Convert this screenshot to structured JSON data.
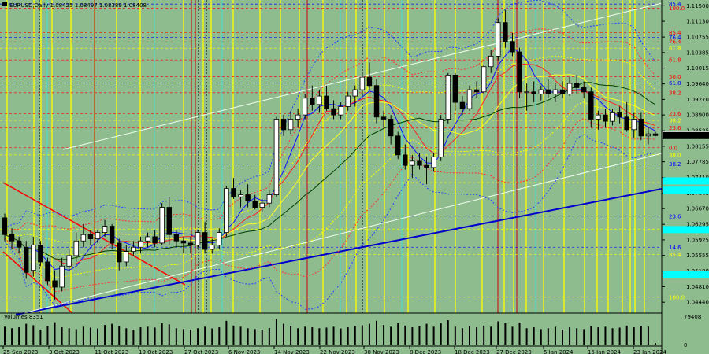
{
  "header": {
    "ohlc": "EURUSD,Daily  1.08425 1.08497 1.08389 1.08408",
    "volume_label": "Volumes 8351"
  },
  "chart_data": {
    "type": "candlestick",
    "symbol": "EURUSD",
    "timeframe": "Daily",
    "open": 1.08425,
    "high": 1.08497,
    "low": 1.08389,
    "close": 1.08408,
    "ylim": [
      1.042,
      1.116
    ],
    "price_ticks": [
      "1.11500",
      "1.11130",
      "1.10755",
      "1.10385",
      "1.10015",
      "1.09640",
      "1.09270",
      "1.08900",
      "1.08525",
      "1.08155",
      "1.07785",
      "1.07410",
      "1.07040",
      "1.06670",
      "1.06295",
      "1.05925",
      "1.05555",
      "1.05180",
      "1.04810",
      "1.04440"
    ],
    "current_price": "1.08408",
    "price_boxes": [
      {
        "price": 1.0843,
        "color": "#ffffff",
        "text_color": "#000000"
      },
      {
        "price": 1.0841,
        "color": "#000000",
        "text_color": "#ffffff"
      },
      {
        "price": 1.0733,
        "color": "#00ffff",
        "text_color": "#000000"
      },
      {
        "price": 1.0711,
        "color": "#00ffff",
        "text_color": "#000000"
      },
      {
        "price": 1.0617,
        "color": "#00ffff",
        "text_color": "#000000"
      },
      {
        "price": 1.0509,
        "color": "#00ffff",
        "text_color": "#000000"
      }
    ],
    "fib_labels": [
      {
        "text": "85.4",
        "price": 1.1154,
        "color": "#0000ff"
      },
      {
        "text": "100.0",
        "price": 1.1144,
        "color": "#ff0000"
      },
      {
        "text": "85.4",
        "price": 1.1086,
        "color": "#ff0000"
      },
      {
        "text": "76.4",
        "price": 1.1075,
        "color": "#0000ff"
      },
      {
        "text": "76.4",
        "price": 1.1064,
        "color": "#ff0000"
      },
      {
        "text": "61.8",
        "price": 1.1049,
        "color": "#ffff00"
      },
      {
        "text": "61.8",
        "price": 1.1021,
        "color": "#ff0000"
      },
      {
        "text": "50.0",
        "price": 1.0981,
        "color": "#ff0000"
      },
      {
        "text": "61.8",
        "price": 1.0966,
        "color": "#0000ff"
      },
      {
        "text": "38.2",
        "price": 1.0943,
        "color": "#ff0000"
      },
      {
        "text": "23.6",
        "price": 1.0893,
        "color": "#ff0000"
      },
      {
        "text": "38.2",
        "price": 1.0877,
        "color": "#ffff00"
      },
      {
        "text": "23.6",
        "price": 1.0859,
        "color": "#ff0000"
      },
      {
        "text": "0.0",
        "price": 1.0812,
        "color": "#ff0000"
      },
      {
        "text": "38.0",
        "price": 1.0795,
        "color": "#ffff00"
      },
      {
        "text": "38.2",
        "price": 1.0773,
        "color": "#0000ff"
      },
      {
        "text": "61.8",
        "price": 1.0729,
        "color": "#ffff00"
      },
      {
        "text": "23.6",
        "price": 1.0649,
        "color": "#0000ff"
      },
      {
        "text": "76.4",
        "price": 1.0618,
        "color": "#ffff00"
      },
      {
        "text": "14.6",
        "price": 1.0575,
        "color": "#0000ff"
      },
      {
        "text": "85.4",
        "price": 1.0558,
        "color": "#ffff00"
      },
      {
        "text": "100.0",
        "price": 1.0456,
        "color": "#ffff00"
      }
    ],
    "date_labels": [
      "25 Sep 2023",
      "3 Oct 2023",
      "11 Oct 2023",
      "19 Oct 2023",
      "27 Oct 2023",
      "6 Nov 2023",
      "14 Nov 2023",
      "22 Nov 2023",
      "30 Nov 2023",
      "8 Dec 2023",
      "18 Dec 2023",
      "27 Dec 2023",
      "5 Jan 2024",
      "15 Jan 2024",
      "23 Jan 2024"
    ],
    "volume_ticks": [
      "79408",
      "0"
    ],
    "candles": [
      {
        "o": 1.0645,
        "h": 1.0655,
        "l": 1.059,
        "c": 1.0605
      },
      {
        "o": 1.0605,
        "h": 1.062,
        "l": 1.057,
        "c": 1.059
      },
      {
        "o": 1.059,
        "h": 1.06,
        "l": 1.056,
        "c": 1.0575
      },
      {
        "o": 1.0575,
        "h": 1.059,
        "l": 1.05,
        "c": 1.0515
      },
      {
        "o": 1.052,
        "h": 1.06,
        "l": 1.0505,
        "c": 1.058
      },
      {
        "o": 1.058,
        "h": 1.059,
        "l": 1.053,
        "c": 1.054
      },
      {
        "o": 1.054,
        "h": 1.055,
        "l": 1.0485,
        "c": 1.0495
      },
      {
        "o": 1.0495,
        "h": 1.052,
        "l": 1.045,
        "c": 1.048
      },
      {
        "o": 1.048,
        "h": 1.055,
        "l": 1.047,
        "c": 1.053
      },
      {
        "o": 1.053,
        "h": 1.057,
        "l": 1.052,
        "c": 1.0555
      },
      {
        "o": 1.0555,
        "h": 1.061,
        "l": 1.054,
        "c": 1.059
      },
      {
        "o": 1.059,
        "h": 1.063,
        "l": 1.0575,
        "c": 1.0605
      },
      {
        "o": 1.0605,
        "h": 1.0615,
        "l": 1.058,
        "c": 1.0595
      },
      {
        "o": 1.0595,
        "h": 1.0615,
        "l": 1.0585,
        "c": 1.061
      },
      {
        "o": 1.061,
        "h": 1.064,
        "l": 1.06,
        "c": 1.0625
      },
      {
        "o": 1.0625,
        "h": 1.063,
        "l": 1.057,
        "c": 1.0585
      },
      {
        "o": 1.0585,
        "h": 1.0595,
        "l": 1.052,
        "c": 1.054
      },
      {
        "o": 1.054,
        "h": 1.058,
        "l": 1.053,
        "c": 1.0565
      },
      {
        "o": 1.0565,
        "h": 1.059,
        "l": 1.0555,
        "c": 1.0575
      },
      {
        "o": 1.0575,
        "h": 1.06,
        "l": 1.056,
        "c": 1.059
      },
      {
        "o": 1.059,
        "h": 1.061,
        "l": 1.0575,
        "c": 1.06
      },
      {
        "o": 1.06,
        "h": 1.0615,
        "l": 1.0575,
        "c": 1.0585
      },
      {
        "o": 1.0585,
        "h": 1.068,
        "l": 1.058,
        "c": 1.067
      },
      {
        "o": 1.067,
        "h": 1.0695,
        "l": 1.058,
        "c": 1.0605
      },
      {
        "o": 1.0605,
        "h": 1.0615,
        "l": 1.0575,
        "c": 1.059
      },
      {
        "o": 1.059,
        "h": 1.06,
        "l": 1.056,
        "c": 1.0585
      },
      {
        "o": 1.0585,
        "h": 1.06,
        "l": 1.056,
        "c": 1.058
      },
      {
        "o": 1.058,
        "h": 1.0615,
        "l": 1.057,
        "c": 1.061
      },
      {
        "o": 1.061,
        "h": 1.0635,
        "l": 1.056,
        "c": 1.057
      },
      {
        "o": 1.057,
        "h": 1.0595,
        "l": 1.056,
        "c": 1.058
      },
      {
        "o": 1.058,
        "h": 1.062,
        "l": 1.057,
        "c": 1.061
      },
      {
        "o": 1.061,
        "h": 1.072,
        "l": 1.06,
        "c": 1.0715
      },
      {
        "o": 1.0715,
        "h": 1.074,
        "l": 1.069,
        "c": 1.0695
      },
      {
        "o": 1.0695,
        "h": 1.071,
        "l": 1.067,
        "c": 1.07
      },
      {
        "o": 1.07,
        "h": 1.0725,
        "l": 1.067,
        "c": 1.0685
      },
      {
        "o": 1.0685,
        "h": 1.07,
        "l": 1.0665,
        "c": 1.067
      },
      {
        "o": 1.067,
        "h": 1.069,
        "l": 1.066,
        "c": 1.068
      },
      {
        "o": 1.068,
        "h": 1.071,
        "l": 1.067,
        "c": 1.07
      },
      {
        "o": 1.07,
        "h": 1.0885,
        "l": 1.0695,
        "c": 1.088
      },
      {
        "o": 1.088,
        "h": 1.089,
        "l": 1.084,
        "c": 1.0855
      },
      {
        "o": 1.0855,
        "h": 1.09,
        "l": 1.0845,
        "c": 1.088
      },
      {
        "o": 1.088,
        "h": 1.0905,
        "l": 1.086,
        "c": 1.089
      },
      {
        "o": 1.089,
        "h": 1.094,
        "l": 1.088,
        "c": 1.093
      },
      {
        "o": 1.093,
        "h": 1.096,
        "l": 1.09,
        "c": 1.0915
      },
      {
        "o": 1.0915,
        "h": 1.095,
        "l": 1.0895,
        "c": 1.0935
      },
      {
        "o": 1.0935,
        "h": 1.096,
        "l": 1.09,
        "c": 1.0905
      },
      {
        "o": 1.0905,
        "h": 1.0925,
        "l": 1.088,
        "c": 1.089
      },
      {
        "o": 1.089,
        "h": 1.092,
        "l": 1.088,
        "c": 1.091
      },
      {
        "o": 1.091,
        "h": 1.0945,
        "l": 1.09,
        "c": 1.0935
      },
      {
        "o": 1.0935,
        "h": 1.096,
        "l": 1.091,
        "c": 1.095
      },
      {
        "o": 1.095,
        "h": 1.099,
        "l": 1.094,
        "c": 1.098
      },
      {
        "o": 1.098,
        "h": 1.1015,
        "l": 1.095,
        "c": 1.096
      },
      {
        "o": 1.096,
        "h": 1.0975,
        "l": 1.087,
        "c": 1.0885
      },
      {
        "o": 1.0885,
        "h": 1.09,
        "l": 1.086,
        "c": 1.088
      },
      {
        "o": 1.088,
        "h": 1.089,
        "l": 1.082,
        "c": 1.084
      },
      {
        "o": 1.084,
        "h": 1.085,
        "l": 1.0785,
        "c": 1.0795
      },
      {
        "o": 1.0795,
        "h": 1.082,
        "l": 1.076,
        "c": 1.077
      },
      {
        "o": 1.077,
        "h": 1.0795,
        "l": 1.074,
        "c": 1.078
      },
      {
        "o": 1.078,
        "h": 1.08,
        "l": 1.076,
        "c": 1.077
      },
      {
        "o": 1.077,
        "h": 1.079,
        "l": 1.0725,
        "c": 1.0765
      },
      {
        "o": 1.0765,
        "h": 1.08,
        "l": 1.0755,
        "c": 1.079
      },
      {
        "o": 1.079,
        "h": 1.089,
        "l": 1.078,
        "c": 1.088
      },
      {
        "o": 1.088,
        "h": 1.099,
        "l": 1.087,
        "c": 1.0985
      },
      {
        "o": 1.0985,
        "h": 1.099,
        "l": 1.09,
        "c": 1.092
      },
      {
        "o": 1.092,
        "h": 1.0935,
        "l": 1.089,
        "c": 1.0905
      },
      {
        "o": 1.0905,
        "h": 1.096,
        "l": 1.09,
        "c": 1.095
      },
      {
        "o": 1.095,
        "h": 1.097,
        "l": 1.093,
        "c": 1.0945
      },
      {
        "o": 1.0945,
        "h": 1.101,
        "l": 1.094,
        "c": 1.1005
      },
      {
        "o": 1.1005,
        "h": 1.1045,
        "l": 1.099,
        "c": 1.103
      },
      {
        "o": 1.103,
        "h": 1.112,
        "l": 1.102,
        "c": 1.111
      },
      {
        "o": 1.111,
        "h": 1.114,
        "l": 1.105,
        "c": 1.1065
      },
      {
        "o": 1.1065,
        "h": 1.1085,
        "l": 1.103,
        "c": 1.104
      },
      {
        "o": 1.104,
        "h": 1.105,
        "l": 1.093,
        "c": 1.0945
      },
      {
        "o": 1.0945,
        "h": 1.0965,
        "l": 1.09,
        "c": 1.0945
      },
      {
        "o": 1.0945,
        "h": 1.097,
        "l": 1.092,
        "c": 1.094
      },
      {
        "o": 1.094,
        "h": 1.096,
        "l": 1.0925,
        "c": 1.095
      },
      {
        "o": 1.095,
        "h": 1.0975,
        "l": 1.093,
        "c": 1.094
      },
      {
        "o": 1.094,
        "h": 1.0965,
        "l": 1.092,
        "c": 1.095
      },
      {
        "o": 1.095,
        "h": 1.097,
        "l": 1.093,
        "c": 1.094
      },
      {
        "o": 1.094,
        "h": 1.098,
        "l": 1.0935,
        "c": 1.0965
      },
      {
        "o": 1.0965,
        "h": 1.0985,
        "l": 1.094,
        "c": 1.0955
      },
      {
        "o": 1.0955,
        "h": 1.097,
        "l": 1.093,
        "c": 1.0945
      },
      {
        "o": 1.0945,
        "h": 1.0955,
        "l": 1.086,
        "c": 1.088
      },
      {
        "o": 1.088,
        "h": 1.09,
        "l": 1.0855,
        "c": 1.089
      },
      {
        "o": 1.089,
        "h": 1.0905,
        "l": 1.086,
        "c": 1.0875
      },
      {
        "o": 1.0875,
        "h": 1.0905,
        "l": 1.0865,
        "c": 1.0895
      },
      {
        "o": 1.0895,
        "h": 1.091,
        "l": 1.087,
        "c": 1.0885
      },
      {
        "o": 1.0885,
        "h": 1.092,
        "l": 1.085,
        "c": 1.0855
      },
      {
        "o": 1.0855,
        "h": 1.0895,
        "l": 1.0835,
        "c": 1.088
      },
      {
        "o": 1.088,
        "h": 1.0895,
        "l": 1.083,
        "c": 1.084
      },
      {
        "o": 1.084,
        "h": 1.086,
        "l": 1.082,
        "c": 1.0845
      },
      {
        "o": 1.0845,
        "h": 1.085,
        "l": 1.0839,
        "c": 1.0841
      }
    ],
    "volumes": [
      60,
      55,
      58,
      70,
      65,
      50,
      62,
      75,
      58,
      55,
      52,
      60,
      57,
      54,
      66,
      70,
      62,
      55,
      50,
      58,
      60,
      57,
      72,
      68,
      55,
      52,
      50,
      55,
      60,
      54,
      58,
      80,
      64,
      60,
      55,
      52,
      50,
      56,
      86,
      70,
      62,
      55,
      60,
      58,
      55,
      57,
      60,
      54,
      58,
      62,
      65,
      70,
      80,
      66,
      60,
      72,
      64,
      58,
      62,
      70,
      60,
      72,
      82,
      60,
      55,
      62,
      58,
      64,
      60,
      78,
      72,
      60,
      74,
      55,
      58,
      52,
      55,
      60,
      50,
      58,
      55,
      52,
      62,
      58,
      60,
      55,
      57,
      64,
      58,
      62,
      60,
      5
    ]
  }
}
